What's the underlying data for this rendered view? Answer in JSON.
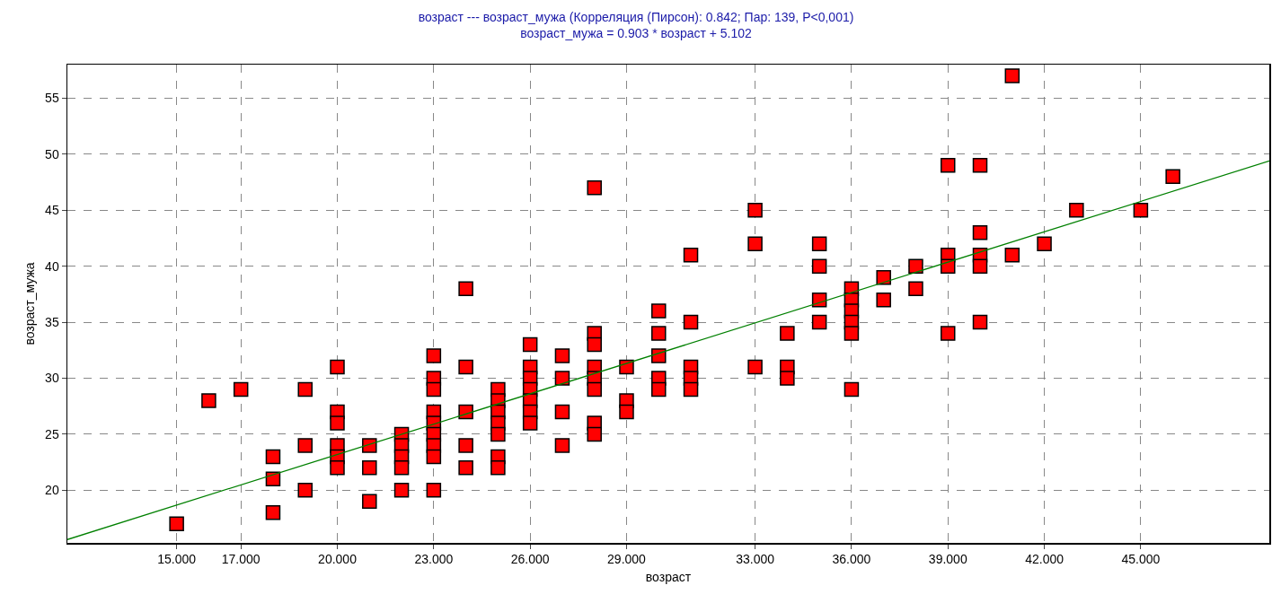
{
  "chart_data": {
    "type": "scatter",
    "title": "возраст --- возраст_мужа (Корреляция (Пирсон): 0.842; Пар: 139, P<0,001)",
    "subtitle": "возраст_мужа = 0.903 * возраст + 5.102",
    "xlabel": "возраст",
    "ylabel": "возраст_мужа",
    "series": [
      {
        "color": "#ff0000",
        "marker": "square",
        "x": [
          15,
          16,
          17,
          18,
          18,
          18,
          19,
          19,
          19,
          20,
          20,
          20,
          20,
          20,
          20,
          21,
          21,
          21,
          22,
          22,
          22,
          22,
          22,
          23,
          23,
          23,
          23,
          23,
          23,
          23,
          23,
          23,
          24,
          24,
          24,
          24,
          24,
          25,
          25,
          25,
          25,
          25,
          25,
          25,
          26,
          26,
          26,
          26,
          26,
          26,
          26,
          27,
          27,
          27,
          27,
          28,
          28,
          28,
          28,
          28,
          28,
          28,
          28,
          29,
          29,
          29,
          30,
          30,
          30,
          30,
          30,
          31,
          31,
          31,
          31,
          31,
          33,
          33,
          33,
          34,
          34,
          34,
          35,
          35,
          35,
          35,
          36,
          36,
          36,
          36,
          36,
          36,
          37,
          37,
          38,
          38,
          39,
          39,
          39,
          39,
          40,
          40,
          40,
          40,
          40,
          41,
          41,
          42,
          43,
          45,
          46
        ],
        "values": [
          17,
          28,
          29,
          23,
          21,
          18,
          29,
          24,
          20,
          31,
          27,
          26,
          24,
          23,
          22,
          24,
          22,
          19,
          25,
          24,
          23,
          22,
          20,
          32,
          30,
          29,
          27,
          26,
          25,
          24,
          23,
          20,
          38,
          31,
          27,
          24,
          22,
          29,
          28,
          27,
          26,
          25,
          23,
          22,
          33,
          31,
          30,
          29,
          28,
          27,
          26,
          32,
          30,
          27,
          24,
          47,
          34,
          33,
          31,
          30,
          29,
          26,
          25,
          31,
          28,
          27,
          36,
          34,
          32,
          30,
          29,
          41,
          35,
          31,
          30,
          29,
          45,
          42,
          31,
          34,
          31,
          30,
          42,
          40,
          37,
          35,
          38,
          37,
          36,
          35,
          34,
          29,
          39,
          37,
          40,
          38,
          49,
          41,
          40,
          34,
          49,
          43,
          41,
          40,
          35,
          57,
          41,
          42,
          45,
          45,
          48
        ]
      },
      {
        "type": "line",
        "color": "#008000",
        "marker": "none",
        "line_style": "solid",
        "x": [
          11.6,
          49
        ],
        "values": [
          15.6,
          49.4
        ]
      }
    ],
    "xlim": [
      11.6,
      49
    ],
    "ylim": [
      15.3,
      58
    ],
    "xticks": [
      {
        "value": 15,
        "label": "15.000"
      },
      {
        "value": 17,
        "label": "17.000"
      },
      {
        "value": 20,
        "label": "20.000"
      },
      {
        "value": 23,
        "label": "23.000"
      },
      {
        "value": 26,
        "label": "26.000"
      },
      {
        "value": 29,
        "label": "29.000"
      },
      {
        "value": 33,
        "label": "33.000"
      },
      {
        "value": 36,
        "label": "36.000"
      },
      {
        "value": 39,
        "label": "39.000"
      },
      {
        "value": 42,
        "label": "42.000"
      },
      {
        "value": 45,
        "label": "45.000"
      }
    ],
    "yticks": [
      20,
      25,
      30,
      35,
      40,
      45,
      50,
      55
    ],
    "grid": true,
    "legend": false
  }
}
